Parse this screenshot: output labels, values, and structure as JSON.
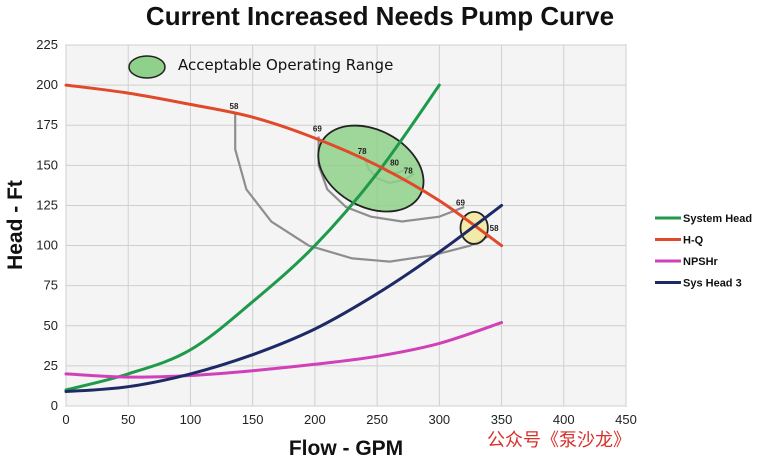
{
  "chart_data": {
    "type": "line",
    "title": "Current Increased Needs Pump Curve",
    "xlabel": "Flow - GPM",
    "ylabel": "Head - Ft",
    "xlim": [
      0,
      450
    ],
    "ylim": [
      0,
      225
    ],
    "xticks": [
      "0",
      "50",
      "100",
      "150",
      "200",
      "250",
      "300",
      "350",
      "400",
      "450"
    ],
    "yticks": [
      "0",
      "25",
      "50",
      "75",
      "100",
      "125",
      "150",
      "175",
      "200",
      "225"
    ],
    "grid": true,
    "legend_position": "right",
    "series": [
      {
        "name": "System Head",
        "color": "#1f9a4a",
        "x": [
          0,
          50,
          100,
          150,
          200,
          250,
          300
        ],
        "y": [
          10,
          20,
          35,
          65,
          100,
          145,
          200
        ]
      },
      {
        "name": "H-Q",
        "color": "#e04a2a",
        "x": [
          0,
          50,
          100,
          150,
          200,
          250,
          300,
          350
        ],
        "y": [
          200,
          195,
          188,
          180,
          167,
          150,
          128,
          100
        ]
      },
      {
        "name": "NPSHr",
        "color": "#d040b8",
        "x": [
          0,
          50,
          100,
          150,
          200,
          250,
          300,
          350
        ],
        "y": [
          20,
          18,
          19,
          22,
          26,
          31,
          39,
          52
        ]
      },
      {
        "name": "Sys Head 3",
        "color": "#1e2a66",
        "x": [
          0,
          50,
          100,
          150,
          200,
          250,
          300,
          350
        ],
        "y": [
          9,
          12,
          20,
          32,
          48,
          70,
          96,
          125
        ]
      }
    ],
    "efficiency_labels": [
      {
        "text": "58",
        "x": 135,
        "y": 185
      },
      {
        "text": "69",
        "x": 202,
        "y": 171
      },
      {
        "text": "78",
        "x": 238,
        "y": 157
      },
      {
        "text": "80",
        "x": 264,
        "y": 150
      },
      {
        "text": "78",
        "x": 275,
        "y": 145
      },
      {
        "text": "69",
        "x": 317,
        "y": 125
      },
      {
        "text": "58",
        "x": 344,
        "y": 109
      }
    ],
    "annotations": [
      {
        "text": "Acceptable Operating Range",
        "marker": "green-ellipse"
      }
    ],
    "highlight_regions": [
      {
        "name": "acceptable-range",
        "center_x": 245,
        "center_y": 148,
        "rx": 45,
        "ry": 24,
        "fill": "#8fd08a"
      },
      {
        "name": "operating-point",
        "center_x": 328,
        "center_y": 111,
        "rx": 11,
        "ry": 10,
        "fill": "#f2e89a"
      }
    ]
  },
  "watermark": "公众号《泵沙龙》"
}
